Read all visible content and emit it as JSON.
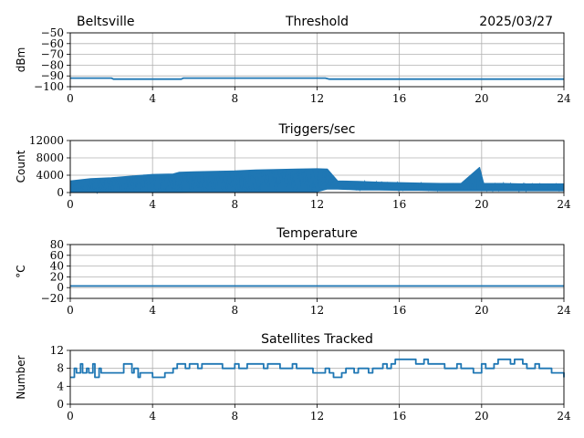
{
  "header": {
    "location": "Beltsville",
    "date": "2025/03/27"
  },
  "colors": {
    "series": "#1f77b4",
    "grid": "#b0b0b0",
    "axis": "#000000"
  },
  "chart_data": [
    {
      "type": "line",
      "title": "Threshold",
      "ylabel": "dBm",
      "xlabel": "",
      "xlim": [
        0,
        24
      ],
      "ylim": [
        -100,
        -50
      ],
      "xticks": [
        0,
        4,
        8,
        12,
        16,
        20,
        24
      ],
      "yticks": [
        -100,
        -90,
        -80,
        -70,
        -60,
        -50
      ],
      "grid": true,
      "series": [
        {
          "x": [
            0,
            2,
            2.1,
            5.4,
            5.5,
            12.4,
            12.6,
            24
          ],
          "y": [
            -92,
            -92,
            -93,
            -93,
            -92,
            -92,
            -93,
            -93
          ]
        }
      ]
    },
    {
      "type": "line",
      "title": "Triggers/sec",
      "ylabel": "Count",
      "xlabel": "",
      "xlim": [
        0,
        24
      ],
      "ylim": [
        0,
        12000
      ],
      "xticks": [
        0,
        4,
        8,
        12,
        16,
        20,
        24
      ],
      "yticks": [
        0,
        4000,
        8000,
        12000
      ],
      "grid": true,
      "series": [
        {
          "x": [
            0,
            1,
            2,
            3,
            4,
            5,
            5.3,
            6,
            7,
            8,
            9,
            10,
            11,
            12,
            12.5,
            13,
            14,
            15,
            16,
            17,
            18,
            19,
            19.9,
            20.1,
            21,
            22,
            23,
            24
          ],
          "lo": [
            0,
            0,
            0,
            0,
            0,
            0,
            0,
            200,
            200,
            200,
            200,
            200,
            200,
            200,
            800,
            800,
            600,
            600,
            500,
            500,
            400,
            400,
            400,
            400,
            400,
            400,
            400,
            400
          ],
          "hi": [
            2700,
            3200,
            3400,
            3800,
            4200,
            4300,
            4700,
            4800,
            4900,
            5000,
            5200,
            5300,
            5400,
            5500,
            5400,
            2700,
            2600,
            2400,
            2300,
            2200,
            2100,
            2100,
            5800,
            2100,
            2100,
            2000,
            2000,
            2000
          ]
        }
      ]
    },
    {
      "type": "line",
      "title": "Temperature",
      "ylabel": "°C",
      "xlabel": "",
      "xlim": [
        0,
        24
      ],
      "ylim": [
        -20,
        80
      ],
      "xticks": [
        0,
        4,
        8,
        12,
        16,
        20,
        24
      ],
      "yticks": [
        -20,
        0,
        20,
        40,
        60,
        80
      ],
      "grid": true,
      "series": [
        {
          "x": [
            0,
            24
          ],
          "y": [
            3,
            3
          ]
        }
      ]
    },
    {
      "type": "line",
      "title": "Satellites Tracked",
      "ylabel": "Number",
      "xlabel": "",
      "xlim": [
        0,
        24
      ],
      "ylim": [
        0,
        12
      ],
      "xticks": [
        0,
        4,
        8,
        12,
        16,
        20,
        24
      ],
      "yticks": [
        0,
        4,
        8,
        12
      ],
      "grid": true,
      "series": [
        {
          "x": [
            0,
            0.2,
            0.3,
            0.5,
            0.6,
            0.8,
            0.9,
            1.1,
            1.2,
            1.4,
            1.5,
            2.5,
            2.6,
            3.0,
            3.1,
            3.3,
            3.4,
            3.8,
            4.0,
            4.5,
            4.6,
            5.0,
            5.2,
            5.6,
            5.8,
            6.2,
            6.4,
            7.2,
            7.4,
            8.0,
            8.2,
            8.6,
            8.8,
            9.4,
            9.6,
            10.0,
            10.2,
            10.8,
            11.0,
            11.6,
            11.8,
            12.2,
            12.4,
            12.6,
            12.8,
            13.2,
            13.4,
            13.8,
            14.0,
            14.5,
            14.7,
            15.2,
            15.4,
            15.6,
            15.8,
            16.6,
            16.8,
            17.2,
            17.4,
            18.0,
            18.2,
            18.8,
            19.0,
            19.4,
            19.6,
            20.0,
            20.2,
            20.6,
            20.8,
            21.4,
            21.6,
            22.0,
            22.2,
            22.6,
            22.8,
            23.2,
            23.4,
            23.8,
            24.0
          ],
          "y": [
            6,
            8,
            7,
            9,
            7,
            8,
            7,
            9,
            6,
            8,
            7,
            7,
            9,
            7,
            8,
            6,
            7,
            7,
            6,
            6,
            7,
            8,
            9,
            8,
            9,
            8,
            9,
            9,
            8,
            9,
            8,
            9,
            9,
            8,
            9,
            9,
            8,
            9,
            8,
            8,
            7,
            7,
            8,
            7,
            6,
            7,
            8,
            7,
            8,
            7,
            8,
            9,
            8,
            9,
            10,
            10,
            9,
            10,
            9,
            9,
            8,
            9,
            8,
            8,
            7,
            9,
            8,
            9,
            10,
            9,
            10,
            9,
            8,
            9,
            8,
            8,
            7,
            7,
            6
          ]
        }
      ]
    }
  ]
}
